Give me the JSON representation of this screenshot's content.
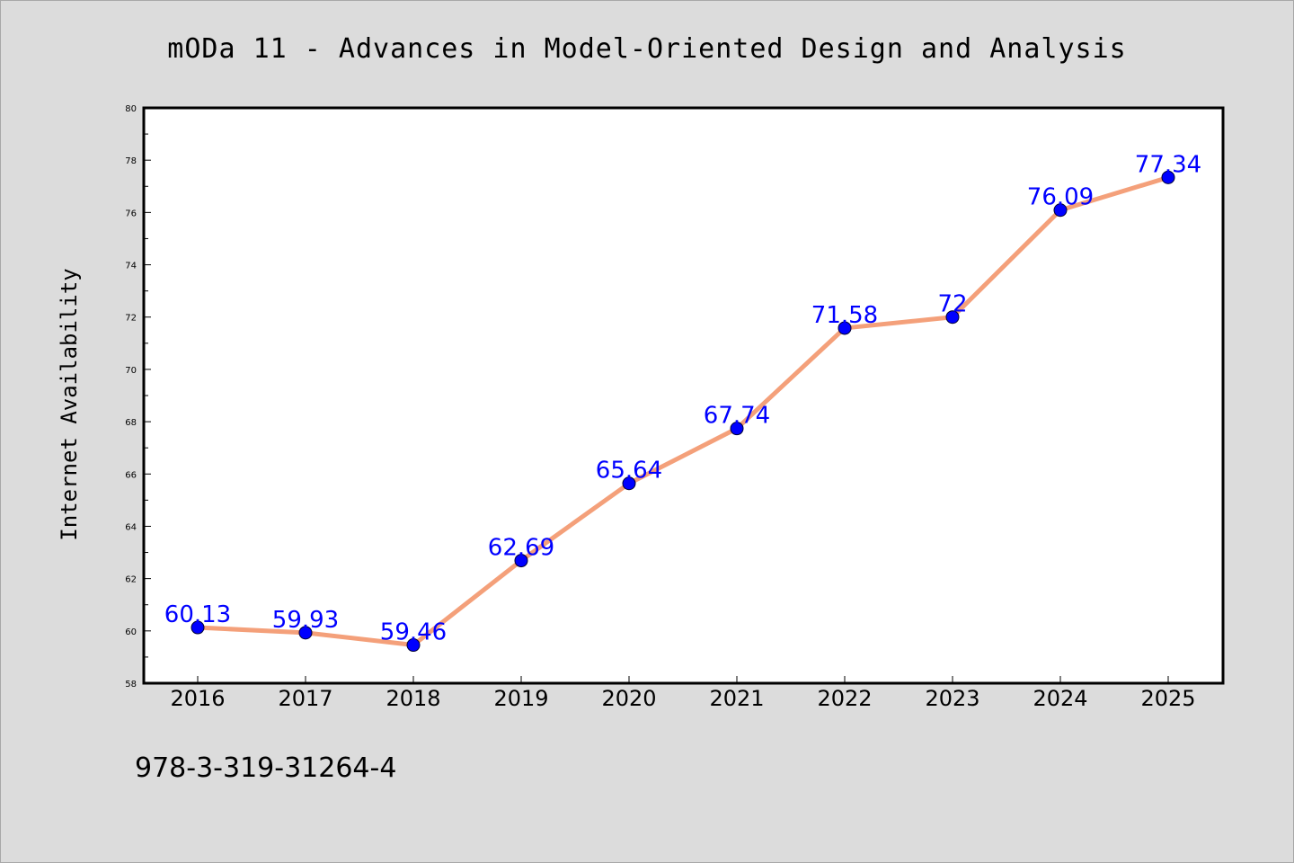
{
  "chart_data": {
    "type": "line",
    "title": "mODa 11 - Advances in Model-Oriented Design and Analysis",
    "xlabel": "",
    "ylabel": "Internet Availability",
    "categories": [
      "2016",
      "2017",
      "2018",
      "2019",
      "2020",
      "2021",
      "2022",
      "2023",
      "2024",
      "2025"
    ],
    "series": [
      {
        "values": [
          60.13,
          59.93,
          59.46,
          62.69,
          65.64,
          67.74,
          71.58,
          72,
          76.09,
          77.34
        ],
        "labels": [
          "60.13",
          "59.93",
          "59.46",
          "62.69",
          "65.64",
          "67.74",
          "71.58",
          "72",
          "76.09",
          "77.34"
        ]
      }
    ],
    "ylim": [
      58,
      80
    ],
    "yticks": [
      58,
      60,
      62,
      64,
      66,
      68,
      70,
      72,
      74,
      76,
      78,
      80
    ],
    "grid": false,
    "legend": "none",
    "line_color": "#f4a07a",
    "marker_color": "#0000ff",
    "label_color": "#0000ff"
  },
  "footnote": "978-3-319-31264-4"
}
